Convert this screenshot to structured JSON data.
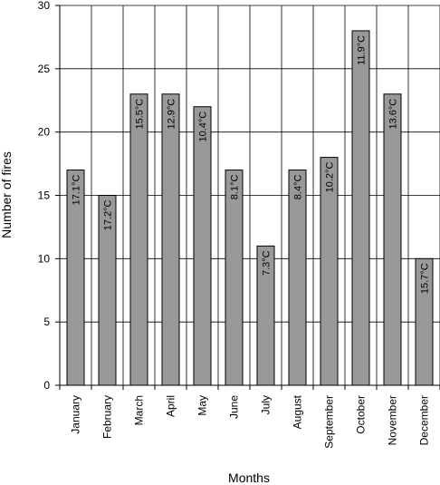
{
  "chart_data": {
    "type": "bar",
    "categories": [
      "January",
      "February",
      "March",
      "April",
      "May",
      "June",
      "July",
      "August",
      "September",
      "October",
      "November",
      "December"
    ],
    "values": [
      17,
      15,
      23,
      23,
      22,
      17,
      11,
      17,
      18,
      28,
      23,
      10
    ],
    "data_labels": [
      "17.1°C",
      "17.2°C",
      "15.5°C",
      "12.9°C",
      "10.4°C",
      "8.1°C",
      "7.3°C",
      "8.4°C",
      "10.2°C",
      "11.9°C",
      "13.6°C",
      "15.7°C"
    ],
    "xlabel": "Months",
    "ylabel": "Number of fires",
    "ylim": [
      0,
      30
    ],
    "yticks": [
      0,
      5,
      10,
      15,
      20,
      25,
      30
    ],
    "grid": true,
    "bar_color": "#999999",
    "bar_edge_color": "#000000",
    "legend": "none"
  }
}
